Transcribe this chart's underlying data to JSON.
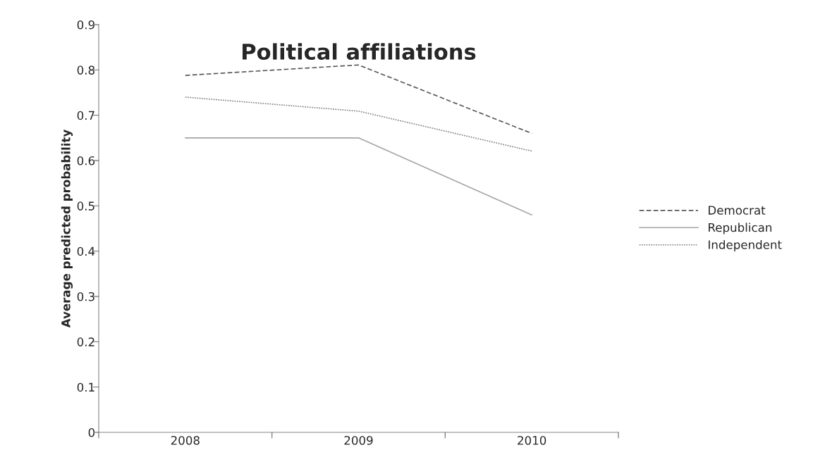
{
  "chart_data": {
    "type": "line",
    "title": "Political affiliations",
    "ylabel": "Average predicted probability",
    "categories": [
      "2008",
      "2009",
      "2010"
    ],
    "series": [
      {
        "name": "Democrat",
        "color": "#595959",
        "line_style": "dashed",
        "values": [
          0.788,
          0.811,
          0.66
        ]
      },
      {
        "name": "Republican",
        "color": "#a6a6a6",
        "line_style": "solid",
        "values": [
          0.65,
          0.65,
          0.48
        ]
      },
      {
        "name": "Independent",
        "color": "#7f7f7f",
        "line_style": "dotted",
        "values": [
          0.74,
          0.709,
          0.621
        ]
      }
    ],
    "ylim": [
      0,
      0.9
    ],
    "yticks": [
      0,
      0.1,
      0.2,
      0.3,
      0.4,
      0.5,
      0.6,
      0.7,
      0.8,
      0.9
    ],
    "grid": false,
    "legend": "right",
    "marker": "none"
  }
}
